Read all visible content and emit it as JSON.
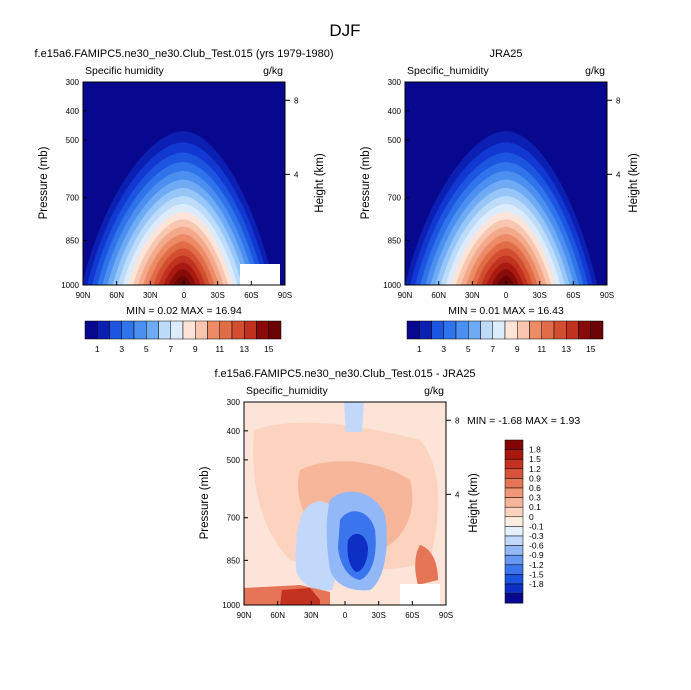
{
  "page_title": "DJF",
  "colors": {
    "abs_scale": [
      "#08088f",
      "#0c1fb3",
      "#1138d0",
      "#1b55e0",
      "#2f74ea",
      "#4b8ff0",
      "#6fabf5",
      "#96c6f8",
      "#bcdcfa",
      "#dcecfc",
      "#fde4d8",
      "#f9c7b0",
      "#f3a98a",
      "#ec8b66",
      "#e16c48",
      "#d34d30",
      "#c1321e",
      "#a81a12",
      "#880a09",
      "#6a0404"
    ],
    "diff_scale": [
      "#08088f",
      "#0d2fc4",
      "#1c52e0",
      "#3a75ee",
      "#6597f3",
      "#92b8f7",
      "#c2d8fb",
      "#e6f0fd",
      "#fdeee4",
      "#fbd3bf",
      "#f7b69a",
      "#f09778",
      "#e67457",
      "#d8513a",
      "#c33121",
      "#a8180e",
      "#850505"
    ],
    "plot_bg_abs": "#08088f",
    "plot_bg_diff": "#fde4d8"
  },
  "chart_data": [
    {
      "type": "heatmap",
      "title": "f.e15a6.FAMIPC5.ne30_ne30.Club_Test.015 (yrs 1979-1980)",
      "left_label": "Specific humidity",
      "right_label": "g/kg",
      "xlabel": "",
      "ylabel": "Pressure (mb)",
      "y2label": "Height (km)",
      "x_ticks": [
        "90N",
        "60N",
        "30N",
        "0",
        "30S",
        "60S",
        "90S"
      ],
      "y_ticks": [
        "300",
        "400",
        "500",
        "700",
        "850",
        "1000"
      ],
      "y2_ticks": [
        "8",
        "4"
      ],
      "ylim": [
        1000,
        300
      ],
      "stats": "MIN =  0.02  MAX =  16.94",
      "min": 0.02,
      "max": 16.94,
      "colorbar_labels": [
        "1",
        "3",
        "5",
        "7",
        "9",
        "11",
        "13",
        "15"
      ],
      "colorbar_bins": 16
    },
    {
      "type": "heatmap",
      "title": "JRA25",
      "left_label": "Specific_humidity",
      "right_label": "g/kg",
      "xlabel": "",
      "ylabel": "Pressure (mb)",
      "y2label": "Height (km)",
      "x_ticks": [
        "90N",
        "60N",
        "30N",
        "0",
        "30S",
        "60S",
        "90S"
      ],
      "y_ticks": [
        "300",
        "400",
        "500",
        "700",
        "850",
        "1000"
      ],
      "y2_ticks": [
        "8",
        "4"
      ],
      "ylim": [
        1000,
        300
      ],
      "stats": "MIN =  0.01  MAX =  16.43",
      "min": 0.01,
      "max": 16.43,
      "colorbar_labels": [
        "1",
        "3",
        "5",
        "7",
        "9",
        "11",
        "13",
        "15"
      ],
      "colorbar_bins": 16
    },
    {
      "type": "heatmap",
      "title": "f.e15a6.FAMIPC5.ne30_ne30.Club_Test.015 - JRA25",
      "left_label": "Specific_humidity",
      "right_label": "g/kg",
      "xlabel": "",
      "ylabel": "Pressure (mb)",
      "y2label": "Height (km)",
      "x_ticks": [
        "90N",
        "60N",
        "30N",
        "0",
        "30S",
        "60S",
        "90S"
      ],
      "y_ticks": [
        "300",
        "400",
        "500",
        "700",
        "850",
        "1000"
      ],
      "y2_ticks": [
        "8",
        "4"
      ],
      "ylim": [
        1000,
        300
      ],
      "stats": "MIN = -1.68  MAX =  1.93",
      "min": -1.68,
      "max": 1.93,
      "colorbar_labels": [
        "1.8",
        "1.5",
        "1.2",
        "0.9",
        "0.6",
        "0.3",
        "0.1",
        "0",
        "-0.1",
        "-0.3",
        "-0.6",
        "-0.9",
        "-1.2",
        "-1.5",
        "-1.8"
      ],
      "colorbar_bins": 17
    }
  ]
}
